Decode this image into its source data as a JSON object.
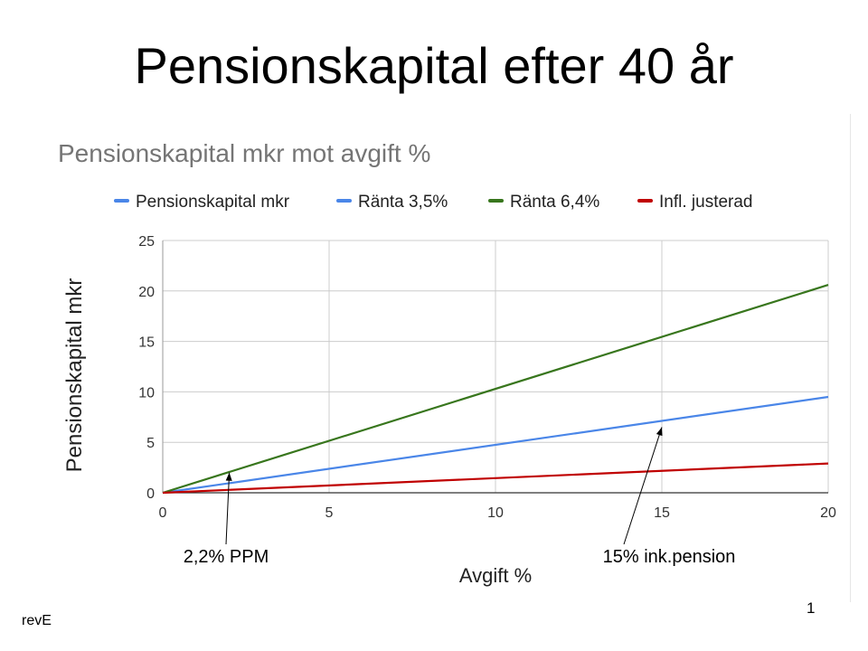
{
  "slide": {
    "title": "Pensionskapital efter 40 år",
    "revision": "revE",
    "page_number": "1"
  },
  "chart_data": {
    "type": "line",
    "title": "Pensionskapital mkr mot avgift %",
    "xlabel": "Avgift %",
    "ylabel": "Pensionskapital mkr",
    "xlim": [
      0,
      20
    ],
    "ylim": [
      0,
      25
    ],
    "xticks": [
      0,
      5,
      10,
      15,
      20
    ],
    "yticks": [
      0,
      5,
      10,
      15,
      20,
      25
    ],
    "grid": true,
    "legend_position": "top",
    "legend": [
      {
        "name": "Pensionskapital mkr",
        "color": "#4a86e8"
      },
      {
        "name": "Ränta 3,5%",
        "color": "#4a86e8"
      },
      {
        "name": "Ränta 6,4%",
        "color": "#38761d"
      },
      {
        "name": "Infl. justerad",
        "color": "#c00000"
      }
    ],
    "series": [
      {
        "name": "Ränta 3,5%",
        "color": "#4a86e8",
        "x": [
          0,
          20
        ],
        "y": [
          0,
          9.5
        ]
      },
      {
        "name": "Ränta 6,4%",
        "color": "#38761d",
        "x": [
          0,
          20
        ],
        "y": [
          0,
          20.6
        ]
      },
      {
        "name": "Infl. justerad",
        "color": "#c00000",
        "x": [
          0,
          20
        ],
        "y": [
          0,
          2.9
        ]
      }
    ],
    "annotations": [
      {
        "text": "2,2% PPM",
        "points_to": {
          "x": 2,
          "y": 2.0
        }
      },
      {
        "text": "15% ink.pension",
        "points_to": {
          "x": 15,
          "y": 6.5
        }
      }
    ]
  }
}
